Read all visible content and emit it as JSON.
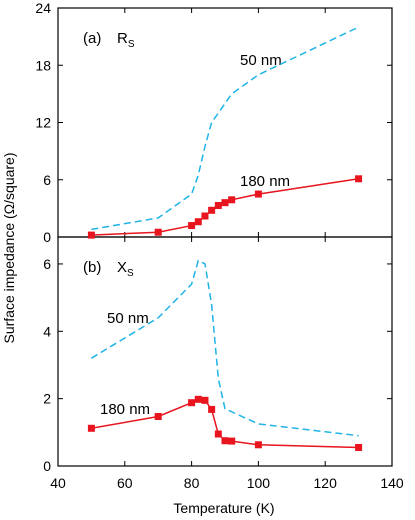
{
  "chart_data": {
    "type": "line",
    "xlabel": "Temperature (K)",
    "ylabel": "Surface impedance (Ω/square)",
    "xlim": [
      40,
      140
    ],
    "xticks": [
      40,
      60,
      80,
      100,
      120,
      140
    ],
    "colors": {
      "50nm": "#1fb4e6",
      "180nm": "#e8141e"
    },
    "panels": [
      {
        "label": "(a)",
        "quantity": "R",
        "subscript": "S",
        "ylim": [
          0,
          24
        ],
        "yticks": [
          0,
          6,
          12,
          18,
          24
        ],
        "series": [
          {
            "name": "50 nm",
            "style": "dashed",
            "x": [
              50,
              70,
              80,
              82,
              84,
              86,
              88,
              90,
              92,
              100,
              130
            ],
            "y": [
              0.8,
              2.0,
              4.5,
              6.5,
              9.5,
              12.0,
              13.0,
              14.0,
              15.0,
              17.0,
              22.0
            ]
          },
          {
            "name": "180 nm",
            "style": "solid",
            "markers": true,
            "x": [
              50,
              70,
              80,
              82,
              84,
              86,
              88,
              90,
              92,
              100,
              130
            ],
            "y": [
              0.2,
              0.5,
              1.2,
              1.6,
              2.2,
              2.8,
              3.3,
              3.6,
              3.9,
              4.5,
              6.1
            ]
          }
        ]
      },
      {
        "label": "(b)",
        "quantity": "X",
        "subscript": "S",
        "ylim": [
          0,
          6.8
        ],
        "yticks": [
          0,
          2,
          4,
          6
        ],
        "series": [
          {
            "name": "50 nm",
            "style": "dashed",
            "x": [
              50,
              70,
              80,
              82,
              84,
              86,
              88,
              90,
              100,
              130
            ],
            "y": [
              3.2,
              4.4,
              5.4,
              6.1,
              6.0,
              4.8,
              2.6,
              1.7,
              1.25,
              0.9
            ]
          },
          {
            "name": "180 nm",
            "style": "solid",
            "markers": true,
            "x": [
              50,
              70,
              80,
              82,
              84,
              86,
              88,
              90,
              92,
              100,
              130
            ],
            "y": [
              1.12,
              1.47,
              1.88,
              1.98,
              1.95,
              1.68,
              0.95,
              0.75,
              0.74,
              0.63,
              0.55
            ]
          }
        ]
      }
    ]
  }
}
